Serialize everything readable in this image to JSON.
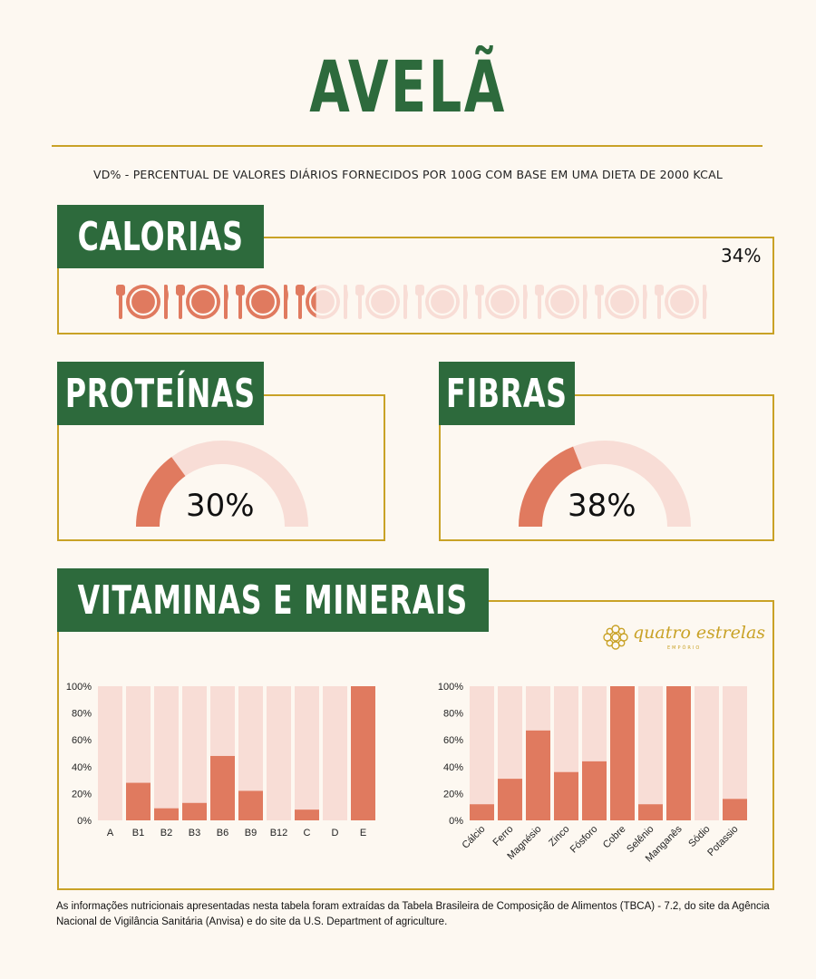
{
  "title": "AVELÃ",
  "subtitle": "VD% - PERCENTUAL DE VALORES DIÁRIOS FORNECIDOS POR 100G COM BASE EM UMA DIETA DE 2000 KCAL",
  "colors": {
    "green": "#2d6a3c",
    "gold": "#c9a227",
    "coral": "#e07a5f",
    "light_coral": "#f8ddd6",
    "background": "#fdf8f1"
  },
  "calorias": {
    "label": "CALORIAS",
    "value_text": "34%",
    "percent": 34,
    "icons_total": 10,
    "icon": "plate-with-cutlery-icon"
  },
  "proteinas": {
    "label": "PROTEÍNAS",
    "value_text": "30%",
    "percent": 30
  },
  "fibras": {
    "label": "FIBRAS",
    "value_text": "38%",
    "percent": 38
  },
  "vitaminas": {
    "label": "VITAMINAS E MINERAIS"
  },
  "logo": {
    "text": "quatro estrelas",
    "sub": "EMPÓRIO"
  },
  "footnote": "As informações nutricionais apresentadas nesta tabela foram extraídas da Tabela Brasileira de Composição de Alimentos (TBCA) - 7.2, do site da Agência Nacional de Vigilância Sanitária (Anvisa) e do site da U.S. Department of agriculture.",
  "chart_data": [
    {
      "type": "bar",
      "categories": [
        "A",
        "B1",
        "B2",
        "B3",
        "B6",
        "B9",
        "B12",
        "C",
        "D",
        "E"
      ],
      "values": [
        0,
        28,
        9,
        13,
        48,
        22,
        0,
        8,
        0,
        100
      ],
      "ylim": [
        0,
        100
      ],
      "yticks": [
        "0%",
        "20%",
        "40%",
        "60%",
        "80%",
        "100%"
      ],
      "background_bars": true
    },
    {
      "type": "bar",
      "categories": [
        "Cálcio",
        "Ferro",
        "Magnésio",
        "Zinco",
        "Fósforo",
        "Cobre",
        "Selênio",
        "Manganês",
        "Sódio",
        "Potassio"
      ],
      "values": [
        12,
        31,
        67,
        36,
        44,
        100,
        12,
        100,
        0,
        16
      ],
      "ylim": [
        0,
        100
      ],
      "yticks": [
        "0%",
        "20%",
        "40%",
        "60%",
        "80%",
        "100%"
      ],
      "background_bars": true
    }
  ]
}
